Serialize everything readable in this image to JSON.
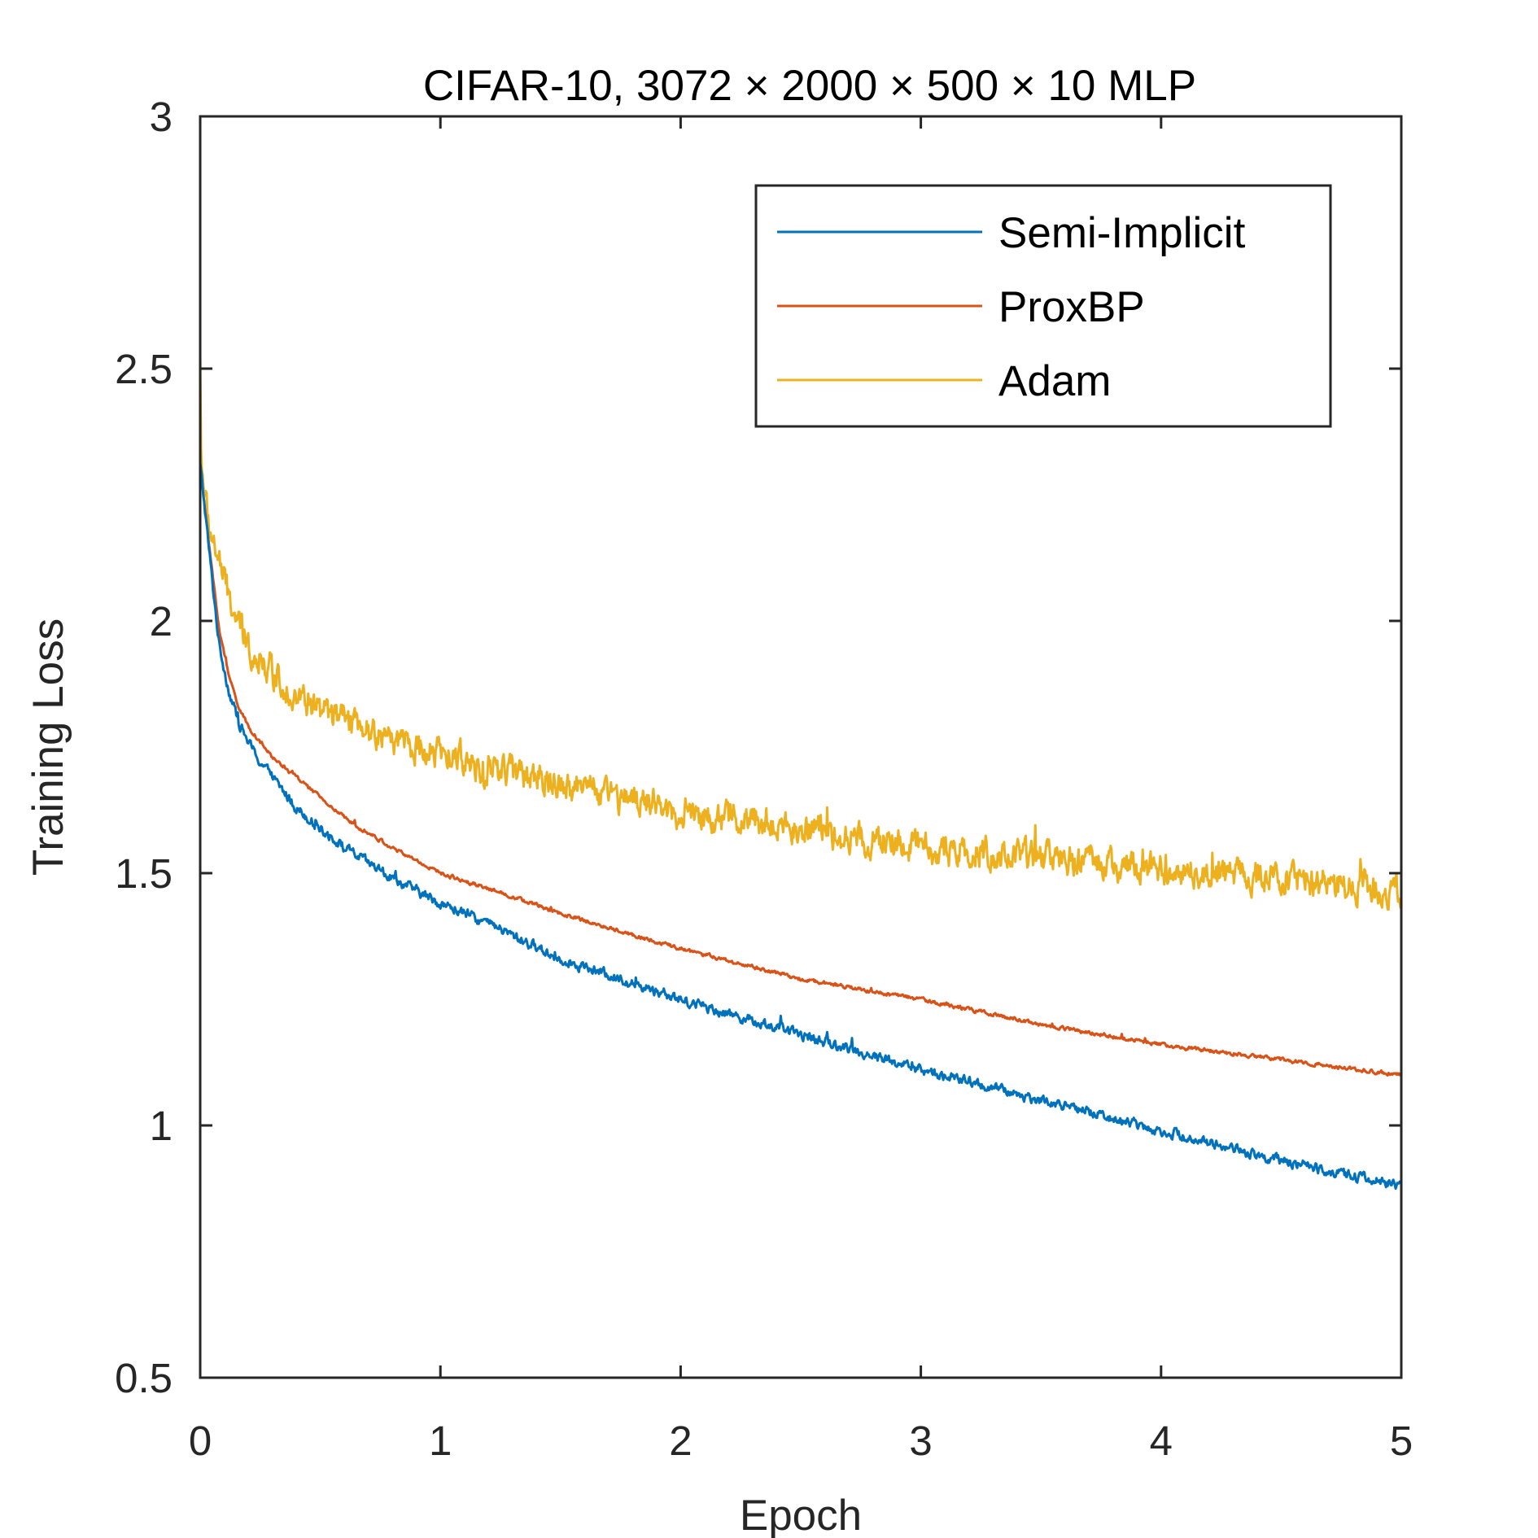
{
  "chart_data": {
    "type": "line",
    "title": "CIFAR-10, 3072 × 2000 × 500 × 10 MLP",
    "xlabel": "Epoch",
    "ylabel": "Training Loss",
    "xlim": [
      0,
      5
    ],
    "ylim": [
      0.5,
      3
    ],
    "xticks": [
      0,
      1,
      2,
      3,
      4,
      5
    ],
    "xtick_labels": [
      "0",
      "1",
      "2",
      "3",
      "4",
      "5"
    ],
    "yticks": [
      0.5,
      1,
      1.5,
      2,
      2.5,
      3
    ],
    "ytick_labels": [
      "0.5",
      "1",
      "1.5",
      "2",
      "2.5",
      "3"
    ],
    "grid": false,
    "legend_position": "top-right",
    "series": [
      {
        "name": "Semi-Implicit",
        "color": "#0072BD",
        "noise": 0.008,
        "x": [
          0,
          0.02,
          0.05,
          0.08,
          0.12,
          0.16,
          0.2,
          0.25,
          0.3,
          0.4,
          0.5,
          0.6,
          0.8,
          1.0,
          1.2,
          1.5,
          2.0,
          2.5,
          3.0,
          3.5,
          4.0,
          4.5,
          5.0
        ],
        "y": [
          2.31,
          2.22,
          2.08,
          1.95,
          1.86,
          1.8,
          1.76,
          1.72,
          1.69,
          1.63,
          1.59,
          1.55,
          1.49,
          1.44,
          1.4,
          1.33,
          1.25,
          1.18,
          1.11,
          1.05,
          0.99,
          0.93,
          0.88
        ]
      },
      {
        "name": "ProxBP",
        "color": "#D95319",
        "noise": 0.003,
        "x": [
          0,
          0.02,
          0.05,
          0.08,
          0.12,
          0.16,
          0.2,
          0.25,
          0.3,
          0.4,
          0.5,
          0.6,
          0.8,
          1.0,
          1.2,
          1.5,
          2.0,
          2.5,
          3.0,
          3.5,
          4.0,
          4.5,
          5.0
        ],
        "y": [
          2.31,
          2.22,
          2.1,
          1.98,
          1.89,
          1.83,
          1.79,
          1.76,
          1.73,
          1.69,
          1.65,
          1.61,
          1.55,
          1.5,
          1.47,
          1.42,
          1.35,
          1.29,
          1.25,
          1.2,
          1.16,
          1.13,
          1.1
        ]
      },
      {
        "name": "Adam",
        "color": "#EDB120",
        "noise": 0.025,
        "x": [
          0,
          0.01,
          0.03,
          0.06,
          0.1,
          0.15,
          0.2,
          0.3,
          0.4,
          0.5,
          0.7,
          0.9,
          1.2,
          1.5,
          2.0,
          2.5,
          3.0,
          3.5,
          4.0,
          4.5,
          5.0
        ],
        "y": [
          2.35,
          2.3,
          2.2,
          2.15,
          2.08,
          2.0,
          1.95,
          1.9,
          1.85,
          1.82,
          1.78,
          1.75,
          1.71,
          1.68,
          1.62,
          1.59,
          1.55,
          1.53,
          1.51,
          1.49,
          1.46
        ]
      }
    ]
  }
}
